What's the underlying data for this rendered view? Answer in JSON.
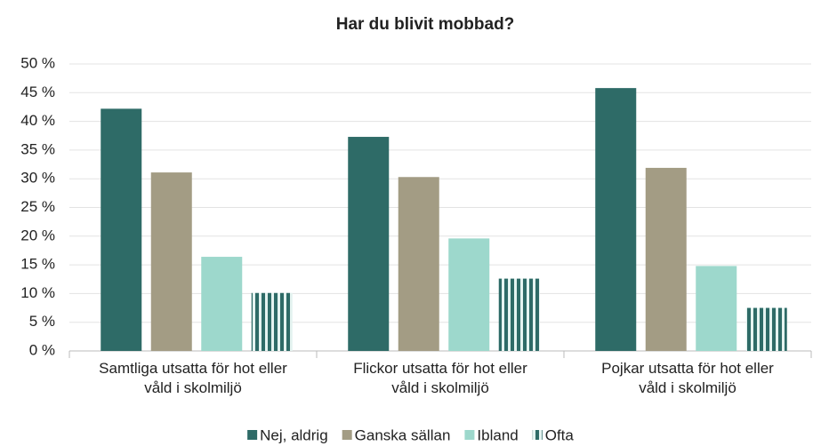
{
  "chart_data": {
    "type": "bar",
    "title": "Har du blivit mobbad?",
    "categories": [
      "Samtliga utsatta för hot eller\nvåld i skolmiljö",
      "Flickor utsatta för hot eller\nvåld i skolmiljö",
      "Pojkar utsatta för hot eller\nvåld i skolmiljö"
    ],
    "series": [
      {
        "name": "Nej, aldrig",
        "color": "#2e6b67",
        "values": [
          42.2,
          37.3,
          45.8
        ]
      },
      {
        "name": "Ganska sällan",
        "color": "#a39c84",
        "values": [
          31.1,
          30.3,
          31.9
        ]
      },
      {
        "name": "Ibland",
        "color": "#9dd8cc",
        "values": [
          16.4,
          19.6,
          14.8
        ]
      },
      {
        "name": "Ofta",
        "color": "#2e6b67",
        "pattern": "stripes",
        "values": [
          10.1,
          12.6,
          7.5
        ]
      }
    ],
    "ylim": [
      0,
      50
    ],
    "yticks": [
      {
        "value": 0,
        "label": "0 %"
      },
      {
        "value": 5,
        "label": "5 %"
      },
      {
        "value": 10,
        "label": "10 %"
      },
      {
        "value": 15,
        "label": "15 %"
      },
      {
        "value": 20,
        "label": "20 %"
      },
      {
        "value": 25,
        "label": "25 %"
      },
      {
        "value": 30,
        "label": "30 %"
      },
      {
        "value": 35,
        "label": "35 %"
      },
      {
        "value": 40,
        "label": "40 %"
      },
      {
        "value": 45,
        "label": "45 %"
      },
      {
        "value": 50,
        "label": "50 %"
      }
    ],
    "grid": true,
    "legend": "bottom"
  }
}
